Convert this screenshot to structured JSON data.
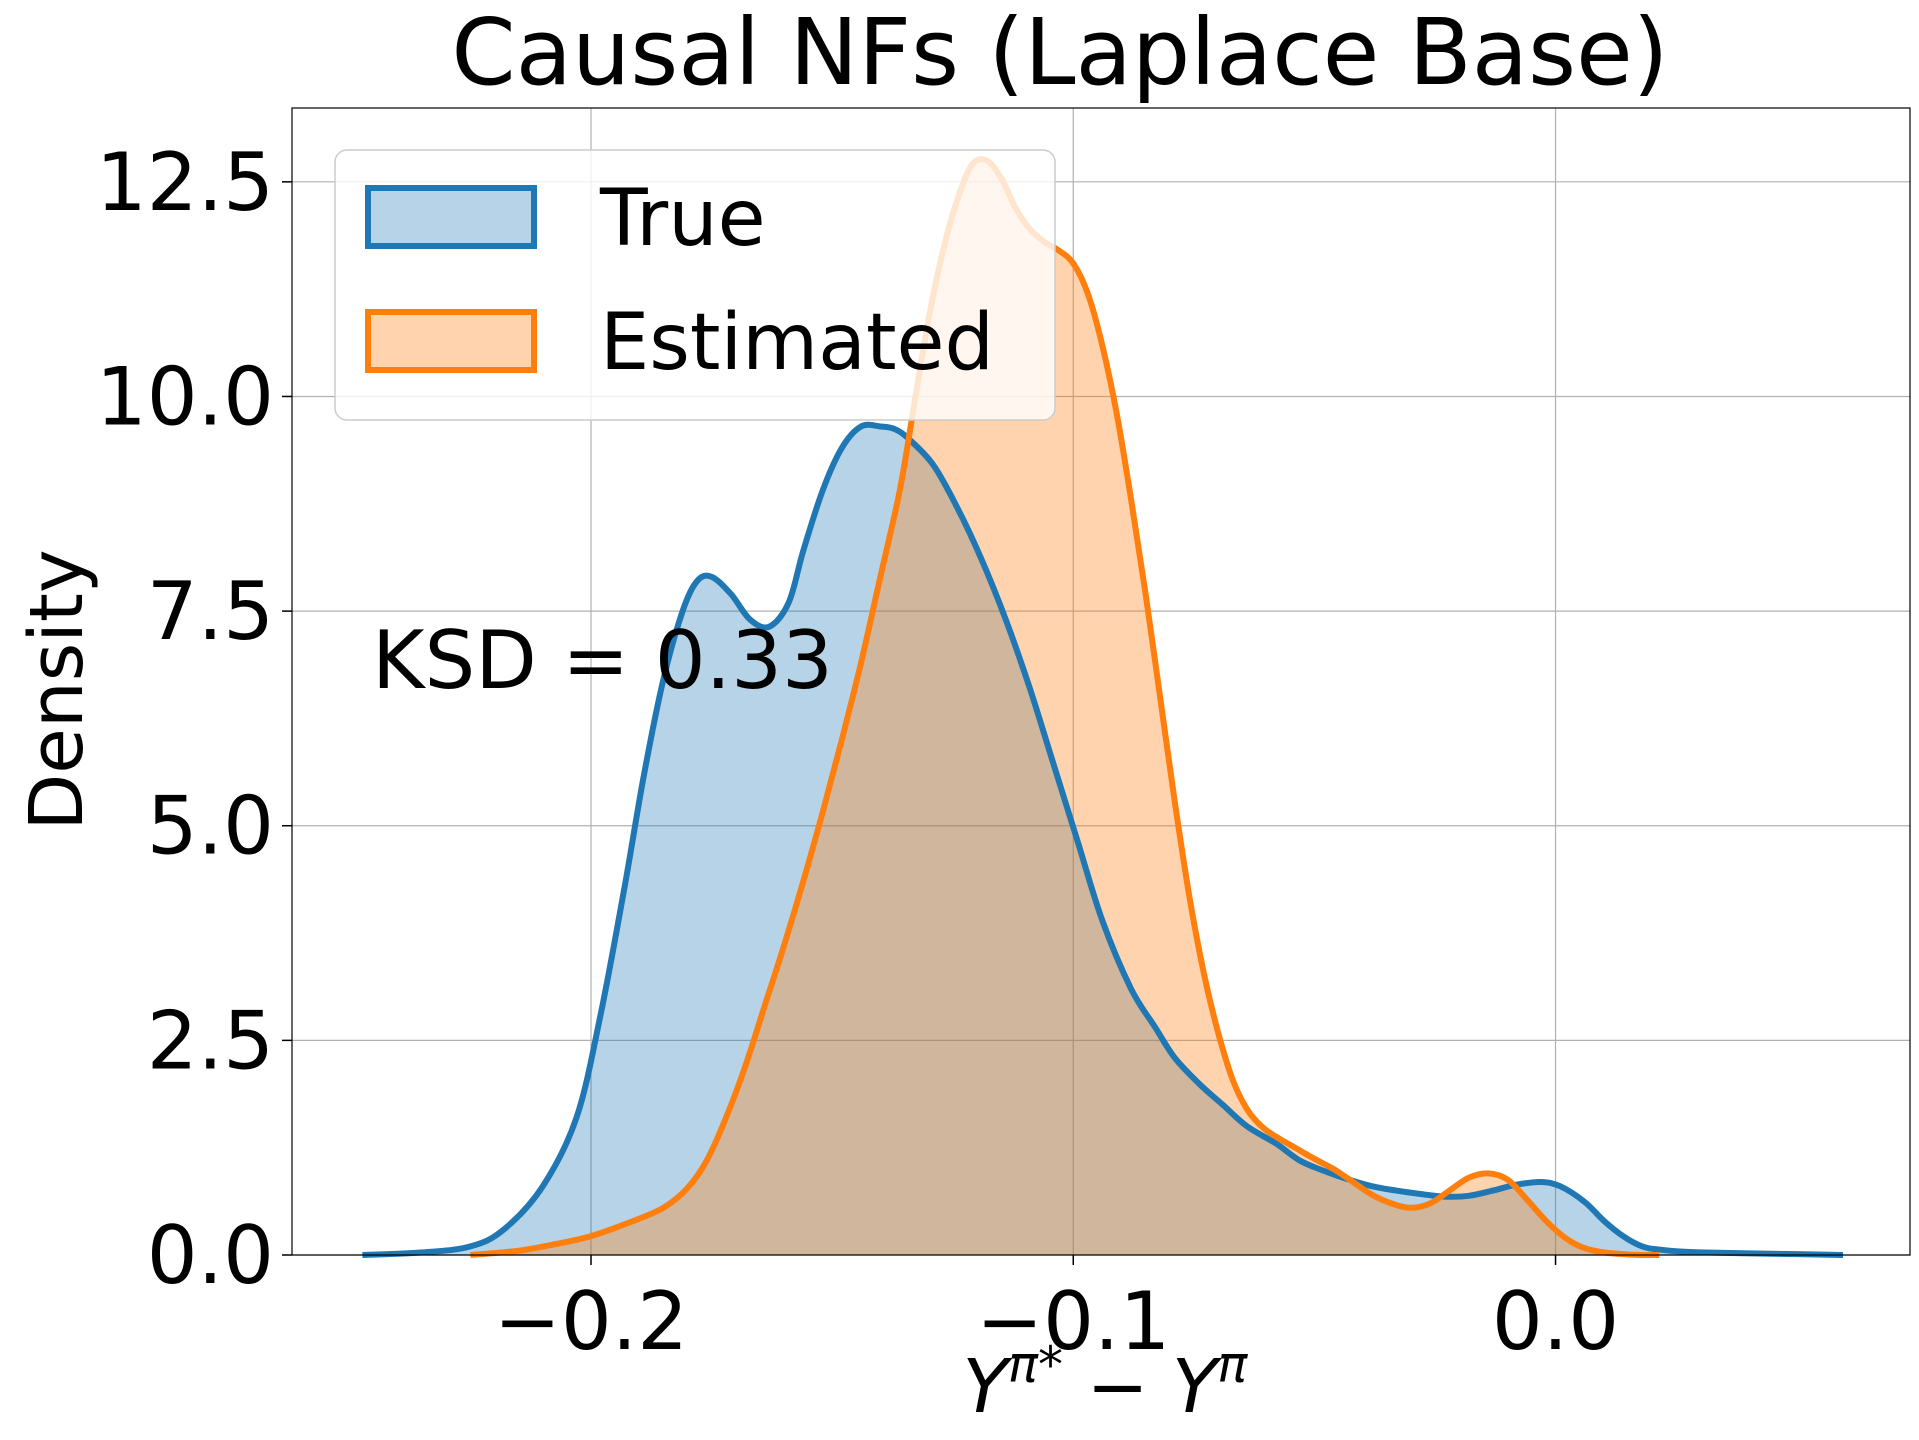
{
  "chart_data": {
    "type": "area",
    "title": "Causal NFs (Laplace Base)",
    "xlabel": "Y^{π*} − Y^{π}",
    "xlabel_parts": {
      "base": "Y",
      "sup1": "π",
      "sup_star": "*",
      "minus": " − ",
      "sup2": "π"
    },
    "ylabel": "Density",
    "xlim": [
      -0.262,
      0.0735
    ],
    "ylim": [
      0,
      13.36
    ],
    "xticks": [
      -0.2,
      -0.1,
      0.0
    ],
    "xtick_labels": [
      "−0.2",
      "−0.1",
      "0.0"
    ],
    "yticks": [
      0.0,
      2.5,
      5.0,
      7.5,
      10.0,
      12.5
    ],
    "ytick_labels": [
      "0.0",
      "2.5",
      "5.0",
      "7.5",
      "10.0",
      "12.5"
    ],
    "grid": true,
    "legend_position": "top-left",
    "annotation": "KSD = 0.33",
    "series": [
      {
        "name": "True",
        "color": "#1f77b4",
        "fill_opacity": 0.32,
        "x": [
          -0.2474,
          -0.235,
          -0.225,
          -0.218,
          -0.21,
          -0.203,
          -0.198,
          -0.193,
          -0.189,
          -0.185,
          -0.181,
          -0.178,
          -0.175,
          -0.171,
          -0.167,
          -0.163,
          -0.159,
          -0.156,
          -0.152,
          -0.148,
          -0.144,
          -0.14,
          -0.137,
          -0.134,
          -0.129,
          -0.124,
          -0.119,
          -0.114,
          -0.109,
          -0.104,
          -0.099,
          -0.094,
          -0.088,
          -0.083,
          -0.079,
          -0.074,
          -0.069,
          -0.064,
          -0.058,
          -0.053,
          -0.048,
          -0.043,
          -0.038,
          -0.033,
          -0.028,
          -0.023,
          -0.018,
          -0.013,
          -0.008,
          -0.003,
          0.001,
          0.006,
          0.01,
          0.014,
          0.018,
          0.022,
          0.03,
          0.05,
          0.0596
        ],
        "y": [
          0.0,
          0.03,
          0.1,
          0.3,
          0.8,
          1.6,
          2.8,
          4.3,
          5.6,
          6.7,
          7.5,
          7.85,
          7.9,
          7.7,
          7.4,
          7.32,
          7.6,
          8.2,
          8.9,
          9.4,
          9.65,
          9.65,
          9.62,
          9.5,
          9.2,
          8.7,
          8.1,
          7.4,
          6.6,
          5.7,
          4.8,
          3.9,
          3.1,
          2.65,
          2.3,
          2.0,
          1.75,
          1.5,
          1.3,
          1.1,
          0.98,
          0.88,
          0.8,
          0.75,
          0.71,
          0.68,
          0.69,
          0.75,
          0.82,
          0.85,
          0.8,
          0.62,
          0.4,
          0.22,
          0.1,
          0.06,
          0.03,
          0.01,
          0.0
        ]
      },
      {
        "name": "Estimated",
        "color": "#ff7f0e",
        "fill_opacity": 0.34,
        "x": [
          -0.225,
          -0.215,
          -0.208,
          -0.2,
          -0.192,
          -0.185,
          -0.18,
          -0.176,
          -0.172,
          -0.168,
          -0.164,
          -0.16,
          -0.156,
          -0.152,
          -0.148,
          -0.144,
          -0.14,
          -0.136,
          -0.133,
          -0.13,
          -0.127,
          -0.124,
          -0.121,
          -0.118,
          -0.115,
          -0.112,
          -0.109,
          -0.106,
          -0.103,
          -0.1,
          -0.097,
          -0.094,
          -0.091,
          -0.088,
          -0.085,
          -0.082,
          -0.079,
          -0.076,
          -0.073,
          -0.07,
          -0.067,
          -0.064,
          -0.061,
          -0.058,
          -0.054,
          -0.05,
          -0.046,
          -0.042,
          -0.038,
          -0.034,
          -0.03,
          -0.026,
          -0.022,
          -0.018,
          -0.014,
          -0.01,
          -0.006,
          -0.002,
          0.002,
          0.006,
          0.01,
          0.014,
          0.018,
          0.0215
        ],
        "y": [
          0.0,
          0.05,
          0.12,
          0.22,
          0.38,
          0.55,
          0.78,
          1.1,
          1.6,
          2.2,
          2.9,
          3.6,
          4.35,
          5.15,
          6.0,
          6.9,
          7.9,
          8.9,
          9.9,
          10.9,
          11.7,
          12.3,
          12.7,
          12.75,
          12.55,
          12.2,
          11.95,
          11.8,
          11.7,
          11.55,
          11.2,
          10.6,
          9.8,
          8.8,
          7.7,
          6.5,
          5.3,
          4.2,
          3.3,
          2.6,
          2.05,
          1.7,
          1.5,
          1.38,
          1.25,
          1.12,
          1.0,
          0.85,
          0.7,
          0.6,
          0.55,
          0.6,
          0.75,
          0.9,
          0.95,
          0.88,
          0.65,
          0.4,
          0.2,
          0.08,
          0.03,
          0.01,
          0.0,
          0.0
        ]
      }
    ]
  }
}
